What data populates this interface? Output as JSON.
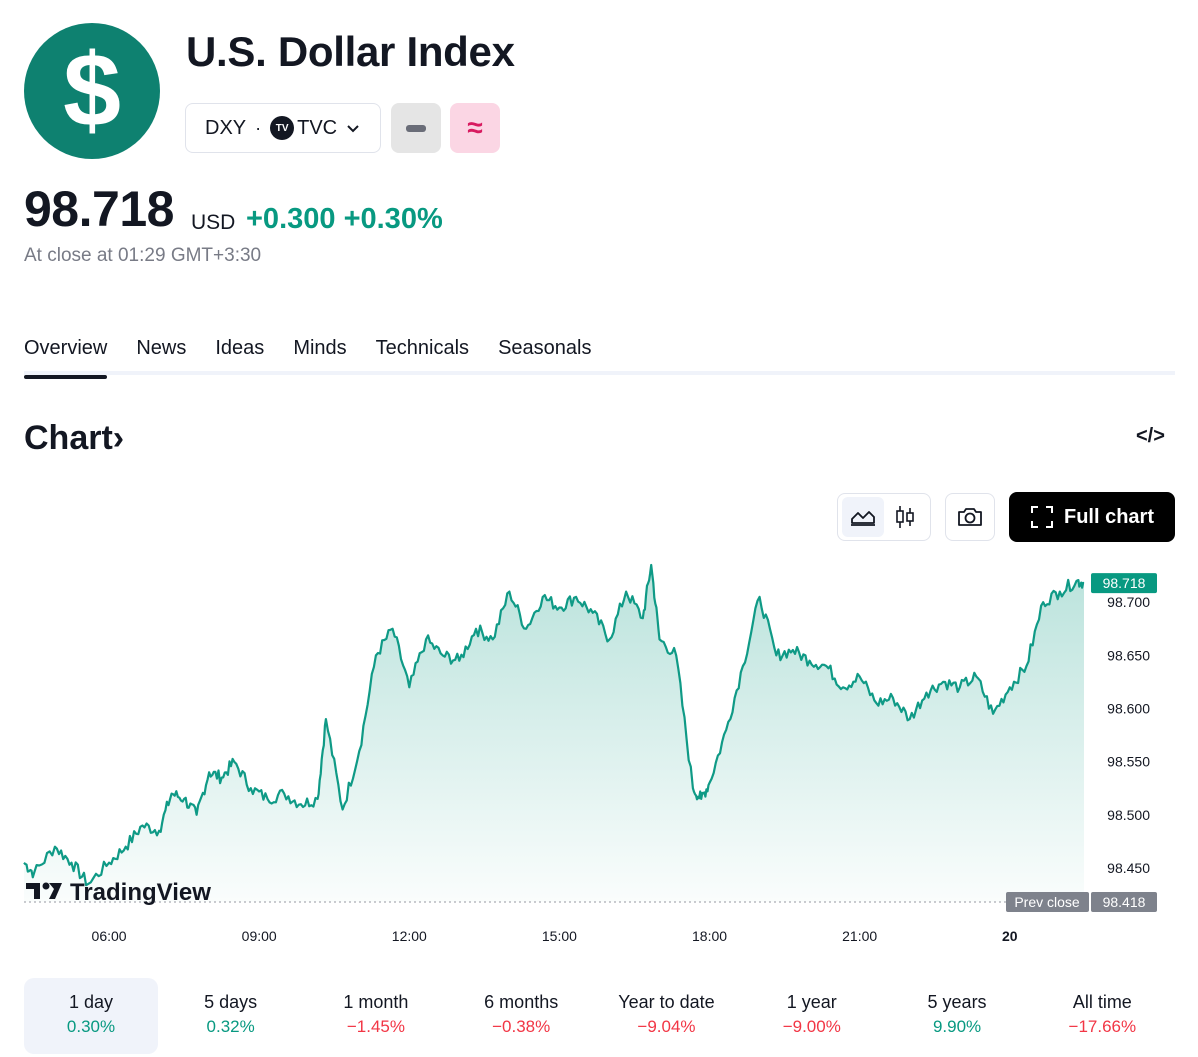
{
  "header": {
    "logo_symbol": "$",
    "title": "U.S. Dollar Index",
    "symbol": "DXY",
    "separator": "·",
    "exchange": "TVC",
    "exchange_badge": "TV",
    "pink_badge_glyph": "≈"
  },
  "quote": {
    "price": "98.718",
    "currency": "USD",
    "change": "+0.300 +0.30%",
    "close_time": "At close at 01:29 GMT+3:30"
  },
  "tabs": [
    "Overview",
    "News",
    "Ideas",
    "Minds",
    "Technicals",
    "Seasonals"
  ],
  "active_tab": "Overview",
  "chart_section": {
    "title": "Chart›",
    "embed_glyph": "</>",
    "full_chart_label": "Full chart"
  },
  "icons": {
    "logo": "dollar-icon",
    "area": "area-chart-icon",
    "candles": "candles-icon",
    "camera": "camera-icon",
    "fullscreen": "fullscreen-icon",
    "embed": "embed-code-icon",
    "watermark": "tradingview-logo"
  },
  "colors": {
    "accent_green": "#089981",
    "negative_red": "#f23645",
    "logo_green": "#0e8170",
    "line": "#0f9a86"
  },
  "chart_data": {
    "type": "area",
    "watermark": "TradingView",
    "x_ticks": [
      "06:00",
      "09:00",
      "12:00",
      "15:00",
      "18:00",
      "21:00",
      "20"
    ],
    "y_ticks": [
      "98.700",
      "98.650",
      "98.600",
      "98.550",
      "98.500",
      "98.450"
    ],
    "ylim": [
      98.418,
      98.735
    ],
    "last_price_label": "98.718",
    "prev_close_label": "Prev close",
    "prev_close_value": "98.418",
    "series": [
      {
        "x": [
          "04:18",
          "04:30",
          "04:55",
          "05:15",
          "05:35",
          "06:00",
          "06:20",
          "06:40",
          "07:00",
          "07:15",
          "07:30",
          "07:45",
          "08:00",
          "08:15",
          "08:30",
          "08:50",
          "09:10",
          "09:30",
          "09:50",
          "10:10",
          "10:20",
          "10:40",
          "11:00",
          "11:20",
          "11:40",
          "12:00",
          "12:20",
          "12:40",
          "13:00",
          "13:20",
          "13:40",
          "14:00",
          "14:20",
          "14:40",
          "15:00",
          "15:20",
          "15:40",
          "16:00",
          "16:20",
          "16:40",
          "16:50",
          "17:00",
          "17:20",
          "17:40",
          "17:50",
          "18:00",
          "18:20",
          "18:40",
          "19:00",
          "19:20",
          "19:40",
          "20:00",
          "20:20",
          "20:40",
          "21:00",
          "21:20",
          "21:40",
          "22:00",
          "22:20",
          "22:40",
          "23:00",
          "23:20",
          "23:40",
          "00:00",
          "00:20",
          "00:40",
          "01:00",
          "01:20",
          "01:29"
        ],
        "values": [
          98.455,
          98.445,
          98.47,
          98.455,
          98.435,
          98.455,
          98.47,
          98.49,
          98.485,
          98.52,
          98.515,
          98.5,
          98.54,
          98.535,
          98.55,
          98.525,
          98.515,
          98.52,
          98.51,
          98.515,
          98.59,
          98.505,
          98.56,
          98.65,
          98.675,
          98.62,
          98.665,
          98.65,
          98.645,
          98.675,
          98.665,
          98.71,
          98.675,
          98.705,
          98.695,
          98.705,
          98.69,
          98.665,
          98.71,
          98.685,
          98.735,
          98.665,
          98.65,
          98.525,
          98.515,
          98.53,
          98.58,
          98.64,
          98.705,
          98.65,
          98.655,
          98.645,
          98.64,
          98.62,
          98.63,
          98.605,
          98.61,
          98.59,
          98.615,
          98.625,
          98.62,
          98.63,
          98.595,
          98.62,
          98.64,
          98.7,
          98.71,
          98.72,
          98.718
        ]
      }
    ]
  }
}
